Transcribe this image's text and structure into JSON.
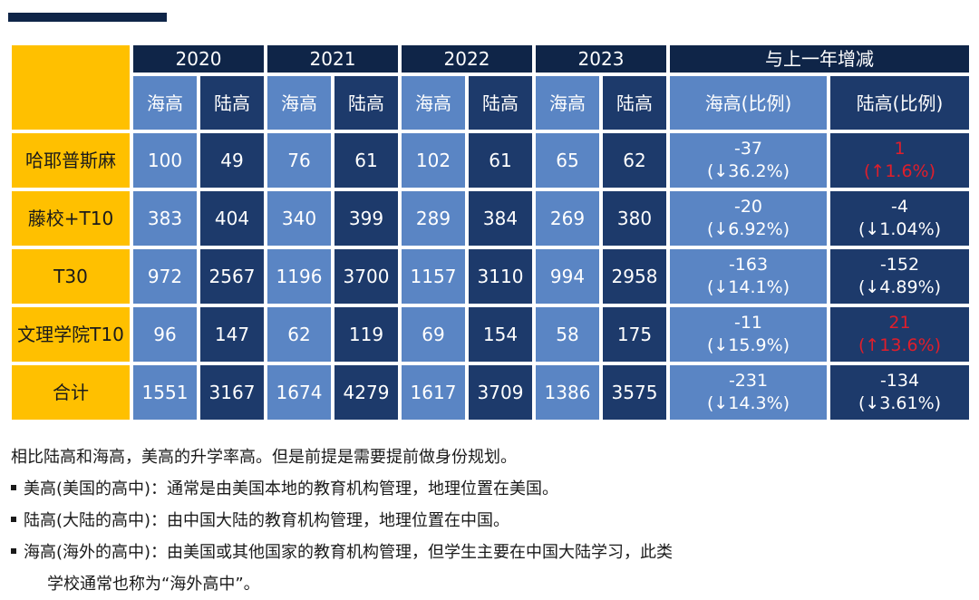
{
  "table": {
    "year_headers": [
      "2020",
      "2021",
      "2022",
      "2023"
    ],
    "change_header": "与上一年增减",
    "sub_headers": [
      "海高",
      "陆高",
      "海高",
      "陆高",
      "海高",
      "陆高",
      "海高",
      "陆高"
    ],
    "change_sub_headers": [
      "海高(比例)",
      "陆高(比例)"
    ],
    "rows": [
      {
        "label": "哈耶普斯麻",
        "values": [
          "100",
          "49",
          "76",
          "61",
          "102",
          "61",
          "65",
          "62"
        ],
        "hai_change": {
          "line1": "-37",
          "line2": "(↓36.2%)"
        },
        "lu_change": {
          "line1": "1",
          "line2": "(↑1.6%)"
        }
      },
      {
        "label": "藤校+T10",
        "values": [
          "383",
          "404",
          "340",
          "399",
          "289",
          "384",
          "269",
          "380"
        ],
        "hai_change": {
          "line1": "-20",
          "line2": "(↓6.92%)"
        },
        "lu_change": {
          "line1": "-4",
          "line2": "(↓1.04%)"
        }
      },
      {
        "label": "T30",
        "values": [
          "972",
          "2567",
          "1196",
          "3700",
          "1157",
          "3110",
          "994",
          "2958"
        ],
        "hai_change": {
          "line1": "-163",
          "line2": "(↓14.1%)"
        },
        "lu_change": {
          "line1": "-152",
          "line2": "(↓4.89%)"
        }
      },
      {
        "label": "文理学院T10",
        "values": [
          "96",
          "147",
          "62",
          "119",
          "69",
          "154",
          "58",
          "175"
        ],
        "hai_change": {
          "line1": "-11",
          "line2": "(↓15.9%)"
        },
        "lu_change": {
          "line1": "21",
          "line2": "(↑13.6%)"
        }
      },
      {
        "label": "合计",
        "values": [
          "1551",
          "3167",
          "1674",
          "4279",
          "1617",
          "3709",
          "1386",
          "3575"
        ],
        "hai_change": {
          "line1": "-231",
          "line2": "(↓14.3%)"
        },
        "lu_change": {
          "line1": "-134",
          "line2": "(↓3.61%)"
        }
      }
    ]
  },
  "notes": {
    "summary": "相比陆高和海高，美高的升学率高。但是前提是需要提前做身份规划。",
    "bullets": [
      "美高(美国的高中)：通常是由美国本地的教育机构管理，地理位置在美国。",
      "陆高(大陆的高中)：由中国大陆的教育机构管理，地理位置在中国。",
      "海高(海外的高中)：由美国或其他国家的教育机构管理，但学生主要在中国大陆学习，此类"
    ],
    "continuation": "学校通常也称为“海外高中”。"
  },
  "colors": {
    "gold": "#ffc000",
    "navy": "#0f2548",
    "light_blue": "#5a85c4",
    "dark_blue": "#1d3a6b",
    "increase_red": "#e01e2b"
  }
}
